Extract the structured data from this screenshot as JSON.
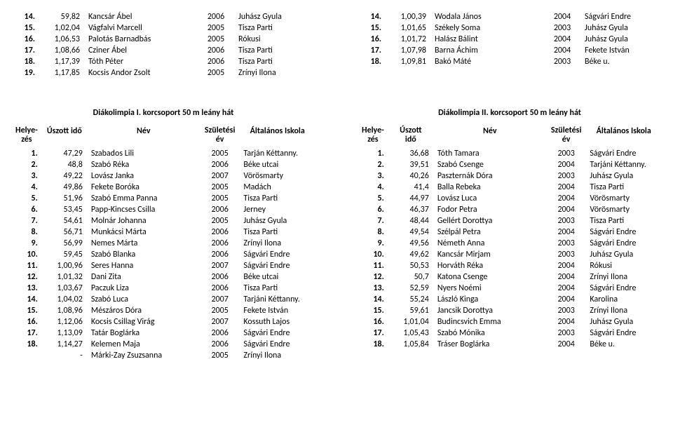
{
  "topLeft": [
    {
      "rank": "14.",
      "time": "59,82",
      "name": "Kancsár Ábel",
      "year": "2006",
      "school": "Juhász Gyula"
    },
    {
      "rank": "15.",
      "time": "1,02,04",
      "name": "Vágfalvi Marcell",
      "year": "2005",
      "school": "Tisza Parti"
    },
    {
      "rank": "16.",
      "time": "1,06,53",
      "name": "Palotás Barnadbás",
      "year": "2005",
      "school": "Rókusi"
    },
    {
      "rank": "17.",
      "time": "1,08,66",
      "name": "Cziner Ábel",
      "year": "2006",
      "school": "Tisza Parti"
    },
    {
      "rank": "18.",
      "time": "1,17,39",
      "name": "Tóth Péter",
      "year": "2006",
      "school": "Tisza Parti"
    },
    {
      "rank": "19.",
      "time": "1,17,85",
      "name": "Kocsis Andor Zsolt",
      "year": "2005",
      "school": "Zrínyi Ilona"
    }
  ],
  "topRight": [
    {
      "rank": "14.",
      "time": "1,00,39",
      "name": "Wodala János",
      "year": "2004",
      "school": "Ságvári Endre"
    },
    {
      "rank": "15.",
      "time": "1,01,65",
      "name": "Székely Soma",
      "year": "2003",
      "school": "Juhász Gyula"
    },
    {
      "rank": "16.",
      "time": "1,01,72",
      "name": "Halász Bálint",
      "year": "2004",
      "school": "Juhász Gyula"
    },
    {
      "rank": "17.",
      "time": "1,07,98",
      "name": "Barna Áchim",
      "year": "2004",
      "school": "Fekete István"
    },
    {
      "rank": "18.",
      "time": "1,09,81",
      "name": "Bakó Máté",
      "year": "2003",
      "school": "Béke u."
    }
  ],
  "sectionLeftTitle": "Diákolimpia I. korcsoport 50 m leány hát",
  "sectionRightTitle": "Diákolimpia II. korcsoport 50 m leány hát",
  "headers": {
    "rank": "Helye-\nzés",
    "time": "Úszott idő",
    "timeRight": "Úszott\nidő",
    "name": "Név",
    "year": "Születési\név",
    "school": "Általános Iskola"
  },
  "bottomLeft": [
    {
      "rank": "1.",
      "time": "47,29",
      "name": "Szabados Lili",
      "year": "2005",
      "school": "Tarján Kéttanny."
    },
    {
      "rank": "2.",
      "time": "48,8",
      "name": "Szabó Réka",
      "year": "2006",
      "school": "Béke utcai"
    },
    {
      "rank": "3.",
      "time": "49,22",
      "name": "Lovász Janka",
      "year": "2007",
      "school": "Vörösmarty"
    },
    {
      "rank": "4.",
      "time": "49,86",
      "name": "Fekete Boróka",
      "year": "2005",
      "school": "Madách"
    },
    {
      "rank": "5.",
      "time": "51,96",
      "name": "Szabó Emma Panna",
      "year": "2005",
      "school": "Tisza Parti"
    },
    {
      "rank": "6.",
      "time": "53,45",
      "name": "Papp-Kincses Csilla",
      "year": "2006",
      "school": "Jerney"
    },
    {
      "rank": "7.",
      "time": "54,61",
      "name": "Molnár Johanna",
      "year": "2005",
      "school": "Juhász Gyula"
    },
    {
      "rank": "8.",
      "time": "56,71",
      "name": "Munkácsi Márta",
      "year": "2006",
      "school": "Tisza Parti"
    },
    {
      "rank": "9.",
      "time": "56,99",
      "name": "Nemes Márta",
      "year": "2006",
      "school": "Zrínyi Ilona"
    },
    {
      "rank": "10.",
      "time": "59,45",
      "name": "Szabó Blanka",
      "year": "2006",
      "school": "Ságvári Endre"
    },
    {
      "rank": "11.",
      "time": "1,00,96",
      "name": "Seres Hanna",
      "year": "2007",
      "school": "Ságvári Endre"
    },
    {
      "rank": "12.",
      "time": "1,01,32",
      "name": "Dani Zita",
      "year": "2006",
      "school": "Béke utcai"
    },
    {
      "rank": "13.",
      "time": "1,03,67",
      "name": "Paczuk Liza",
      "year": "2006",
      "school": "Tisza Parti"
    },
    {
      "rank": "14.",
      "time": "1,04,02",
      "name": "Szabó Luca",
      "year": "2007",
      "school": "Tarjáni Kéttanny."
    },
    {
      "rank": "15.",
      "time": "1,08,96",
      "name": "Mészáros Dóra",
      "year": "2005",
      "school": "Fekete István"
    },
    {
      "rank": "16.",
      "time": "1,12,06",
      "name": "Kocsis Csillag Virág",
      "year": "2007",
      "school": "Kossuth Lajos"
    },
    {
      "rank": "17.",
      "time": "1,13,09",
      "name": "Tatár Boglárka",
      "year": "2006",
      "school": "Ságvári Endre"
    },
    {
      "rank": "18.",
      "time": "1,14,27",
      "name": "Kelemen Maja",
      "year": "2006",
      "school": "Ságvári Endre"
    },
    {
      "rank": "",
      "time": "-",
      "name": "Márki-Zay Zsuzsanna",
      "year": "2005",
      "school": "Zrínyi Ilona"
    }
  ],
  "bottomRight": [
    {
      "rank": "1.",
      "time": "36,68",
      "name": "Tóth Tamara",
      "year": "2003",
      "school": "Ságvári Endre"
    },
    {
      "rank": "2.",
      "time": "39,51",
      "name": "Szabó Csenge",
      "year": "2004",
      "school": "Tarjáni Kéttanny."
    },
    {
      "rank": "3.",
      "time": "40,26",
      "name": "Paszternák Dóra",
      "year": "2003",
      "school": "Juhász Gyula"
    },
    {
      "rank": "4.",
      "time": "41,4",
      "name": "Balla Rebeka",
      "year": "2004",
      "school": "Tisza Parti"
    },
    {
      "rank": "5.",
      "time": "44,97",
      "name": "Lovász Luca",
      "year": "2004",
      "school": "Vörösmarty"
    },
    {
      "rank": "6.",
      "time": "46,37",
      "name": "Fodor Petra",
      "year": "2004",
      "school": "Vörösmarty"
    },
    {
      "rank": "7.",
      "time": "48,44",
      "name": "Gellért Dorottya",
      "year": "2003",
      "school": "Tisza Parti"
    },
    {
      "rank": "8.",
      "time": "49,54",
      "name": "Szélpál Petra",
      "year": "2004",
      "school": "Ságvári Endre"
    },
    {
      "rank": "9.",
      "time": "49,56",
      "name": "Németh Anna",
      "year": "2003",
      "school": "Ságvári Endre"
    },
    {
      "rank": "10.",
      "time": "49,62",
      "name": "Kancsár Mirjam",
      "year": "2003",
      "school": "Juhász Gyula"
    },
    {
      "rank": "11.",
      "time": "50,53",
      "name": "Horváth Réka",
      "year": "2004",
      "school": "Rókusi"
    },
    {
      "rank": "12.",
      "time": "50,7",
      "name": "Katona Csenge",
      "year": "2004",
      "school": "Zrínyi Ilona"
    },
    {
      "rank": "13.",
      "time": "52,59",
      "name": "Nyers Noémi",
      "year": "2004",
      "school": "Ságvári Endre"
    },
    {
      "rank": "14.",
      "time": "55,24",
      "name": "László Kinga",
      "year": "2004",
      "school": "Karolina"
    },
    {
      "rank": "15.",
      "time": "59,61",
      "name": "Jancsik Dorottya",
      "year": "2003",
      "school": "Zrínyi Ilona"
    },
    {
      "rank": "16.",
      "time": "1,01,04",
      "name": "Budincsvich Emma",
      "year": "2004",
      "school": "Juhász Gyula"
    },
    {
      "rank": "17.",
      "time": "1,05,43",
      "name": "Szabó Mónika",
      "year": "2003",
      "school": "Ságvári Endre"
    },
    {
      "rank": "18.",
      "time": "1,05,84",
      "name": "Tráser Boglárka",
      "year": "2004",
      "school": "Béke u."
    }
  ]
}
